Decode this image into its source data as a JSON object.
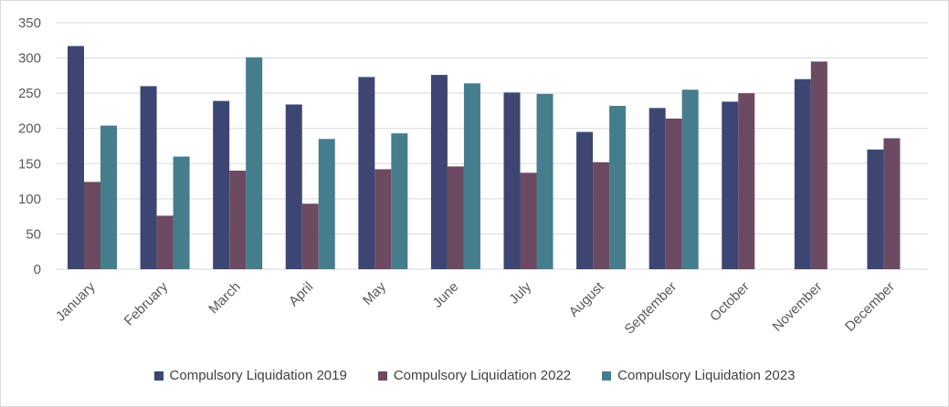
{
  "chart_data": {
    "type": "bar",
    "title": "",
    "xlabel": "",
    "ylabel": "",
    "ylim": [
      0,
      350
    ],
    "yticks": [
      0,
      50,
      100,
      150,
      200,
      250,
      300,
      350
    ],
    "grid": true,
    "legend_position": "bottom",
    "categories": [
      "January",
      "February",
      "March",
      "April",
      "May",
      "June",
      "July",
      "August",
      "September",
      "October",
      "November",
      "December"
    ],
    "series": [
      {
        "name": "Compulsory Liquidation 2019",
        "color": "#3d4673",
        "values": [
          317,
          260,
          239,
          234,
          273,
          276,
          251,
          195,
          229,
          238,
          270,
          170
        ]
      },
      {
        "name": "Compulsory Liquidation 2022",
        "color": "#6b4a62",
        "values": [
          124,
          76,
          140,
          93,
          142,
          146,
          137,
          152,
          214,
          250,
          295,
          186
        ]
      },
      {
        "name": "Compulsory Liquidation 2023",
        "color": "#467d8d",
        "values": [
          204,
          160,
          301,
          185,
          193,
          264,
          249,
          232,
          255,
          null,
          null,
          null
        ]
      }
    ]
  }
}
